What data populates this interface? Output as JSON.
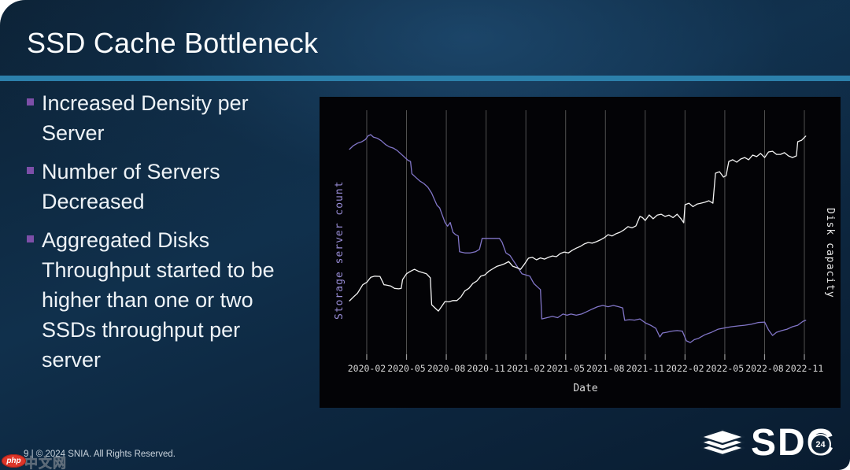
{
  "slide": {
    "title": "SSD Cache Bottleneck",
    "bullets": [
      "Increased Density per Server",
      "Number of Servers Decreased",
      "Aggregated Disks Throughput started to be higher than one or two SSDs throughput per server"
    ],
    "footer": "9 | © 2024 SNIA. All Rights Reserved.",
    "logo": {
      "text": "SDC",
      "badge": "24"
    },
    "watermark": {
      "badge": "php",
      "text": "中文网"
    }
  },
  "colors": {
    "accent": "#2c80ab",
    "bullet": "#7d4fa8",
    "chart_background": "#030306",
    "gridline": "#515151",
    "tick": "#9a9a9a",
    "tick_label": "#d9d9d9",
    "series_count": "#8175c7",
    "series_capacity": "#f4f4f4"
  },
  "chart_data": {
    "type": "line",
    "title": "",
    "xlabel": "Date",
    "ylabel_left": "Storage server count",
    "ylabel_right": "Disk capacity",
    "legend": "none",
    "grid": "vertical-only",
    "xlim": [
      -0.6,
      34.8
    ],
    "ylim": [
      0,
      100
    ],
    "x_unit": "months since 2020-01",
    "x_tick_values": [
      1,
      4,
      7,
      10,
      13,
      16,
      19,
      22,
      25,
      28,
      31,
      34
    ],
    "x_ticks": [
      "2020-02",
      "2020-05",
      "2020-08",
      "2020-11",
      "2021-02",
      "2021-05",
      "2021-08",
      "2021-11",
      "2022-02",
      "2022-05",
      "2022-08",
      "2022-11"
    ],
    "series": [
      {
        "name": "Storage server count",
        "axis": "left",
        "color": "#8175c7",
        "x": [
          -0.3,
          0,
          0.3,
          0.6,
          0.9,
          1.1,
          1.3,
          1.5,
          1.8,
          2.1,
          2.4,
          2.7,
          3,
          3.3,
          3.6,
          3.9,
          4.1,
          4.3,
          4.4,
          4.7,
          5,
          5.3,
          5.6,
          5.9,
          6.1,
          6.3,
          6.5,
          6.7,
          6.9,
          7.1,
          7.3,
          7.5,
          7.7,
          7.9,
          8,
          8.4,
          8.8,
          9.2,
          9.5,
          9.7,
          10.2,
          10.7,
          11,
          11.2,
          11.5,
          11.8,
          12.1,
          12.4,
          12.7,
          13,
          13.3,
          13.6,
          13.9,
          14.1,
          14.2,
          14.6,
          15,
          15.4,
          15.8,
          16.1,
          16.4,
          16.8,
          17.2,
          17.6,
          18,
          18.4,
          18.8,
          19.2,
          19.6,
          20,
          20.3,
          20.45,
          20.8,
          21.2,
          21.6,
          22,
          22.4,
          22.8,
          23.1,
          23.3,
          23.6,
          24,
          24.4,
          24.8,
          25.1,
          25.4,
          25.7,
          26,
          26.5,
          27,
          27.5,
          28,
          28.5,
          29,
          29.5,
          30,
          30.5,
          31,
          31.3,
          31.6,
          31.9,
          32.3,
          32.7,
          33.1,
          33.5,
          33.9,
          34.1
        ],
        "y": [
          84,
          85.5,
          86.5,
          87,
          88,
          89.5,
          90,
          89,
          88.5,
          87.5,
          86,
          85,
          84.5,
          83.5,
          82,
          80.5,
          79.5,
          79,
          74,
          72.5,
          71,
          70,
          68.5,
          66,
          63.5,
          61,
          60,
          57,
          54,
          52.5,
          54,
          50,
          49,
          48.5,
          42,
          41.5,
          41.5,
          42,
          43,
          47.5,
          47.5,
          47.5,
          47.5,
          46,
          41.5,
          40.5,
          38,
          35.5,
          33,
          32.5,
          32,
          29,
          27.5,
          26.5,
          14.5,
          15,
          15.5,
          15,
          16.5,
          16,
          16.5,
          16,
          16.5,
          17.5,
          18.5,
          19.5,
          20,
          19.5,
          20,
          19.5,
          19,
          13.9,
          14.2,
          14,
          14.5,
          12.9,
          11.9,
          10.6,
          7.1,
          8.7,
          9,
          9.5,
          9.7,
          9.5,
          5.5,
          4.8,
          6,
          6.5,
          8,
          9,
          10.3,
          10.8,
          11.3,
          11.6,
          11.9,
          12.3,
          13,
          13.2,
          10,
          7.7,
          9,
          9.7,
          10.3,
          11.3,
          11.9,
          13.5,
          13.9
        ]
      },
      {
        "name": "Disk capacity",
        "axis": "right",
        "color": "#f4f4f4",
        "x": [
          -0.3,
          0,
          0.3,
          0.7,
          1,
          1.3,
          1.6,
          2,
          2.3,
          2.45,
          2.8,
          3.1,
          3.4,
          3.6,
          3.7,
          4,
          4.3,
          4.6,
          4.9,
          5.2,
          5.5,
          5.8,
          5.9,
          6.2,
          6.4,
          6.7,
          6.9,
          7.2,
          7.5,
          7.8,
          8.1,
          8.4,
          8.7,
          9,
          9.3,
          9.6,
          9.9,
          10.2,
          10.5,
          10.8,
          11.1,
          11.4,
          11.7,
          12,
          12.3,
          12.6,
          12.9,
          13.2,
          13.5,
          13.8,
          14.1,
          14.4,
          14.7,
          15,
          15.3,
          15.6,
          15.9,
          16.2,
          16.5,
          16.8,
          17.1,
          17.4,
          17.7,
          18,
          18.3,
          18.6,
          18.9,
          19.2,
          19.5,
          19.8,
          20.1,
          20.4,
          20.7,
          21,
          21.3,
          21.6,
          21.8,
          22,
          22.3,
          22.6,
          22.9,
          23.2,
          23.5,
          23.8,
          24.1,
          24.4,
          24.7,
          24.9,
          25,
          25.3,
          25.6,
          25.9,
          26.2,
          26.5,
          26.8,
          27.1,
          27.3,
          27.6,
          27.9,
          28.1,
          28.3,
          28.6,
          28.9,
          29.2,
          29.5,
          29.8,
          30.1,
          30.4,
          30.7,
          31,
          31.3,
          31.6,
          31.9,
          32.2,
          32.5,
          32.8,
          33.1,
          33.4,
          33.5,
          33.8,
          34.1
        ],
        "y": [
          21.9,
          23.5,
          25,
          28.5,
          29.5,
          31.5,
          32,
          31.9,
          28.5,
          28.4,
          28,
          27,
          26.8,
          27,
          30.6,
          33,
          34,
          34.8,
          34,
          33.5,
          33,
          31.3,
          20.3,
          18.7,
          17.7,
          20,
          21.6,
          21.5,
          22,
          22,
          23.5,
          26,
          27,
          29,
          30,
          32,
          32.5,
          34,
          35,
          36,
          36.5,
          37.1,
          38,
          36.1,
          35.5,
          34.8,
          37,
          39.4,
          39.7,
          38.7,
          39.5,
          39,
          39.7,
          40.3,
          40,
          41.3,
          41.9,
          41.5,
          42.6,
          43.5,
          44.2,
          45.2,
          45.8,
          45.5,
          46.1,
          46.8,
          47.7,
          49,
          48.5,
          49.4,
          50,
          51,
          52.3,
          51.8,
          52.6,
          56.5,
          56,
          54.8,
          57.1,
          55.5,
          57,
          57.4,
          56.5,
          57,
          56,
          57.4,
          55.5,
          53.9,
          61.3,
          61.9,
          60.5,
          61.5,
          61.9,
          62.3,
          62.9,
          61.9,
          74.2,
          74.8,
          72.6,
          73.2,
          79,
          79.7,
          78.7,
          80,
          80.6,
          79.7,
          81.6,
          81,
          82.3,
          80.6,
          82.9,
          83.2,
          81.9,
          81.9,
          82.6,
          81.3,
          80.6,
          81.3,
          87.1,
          87.7,
          89.4
        ]
      }
    ]
  }
}
